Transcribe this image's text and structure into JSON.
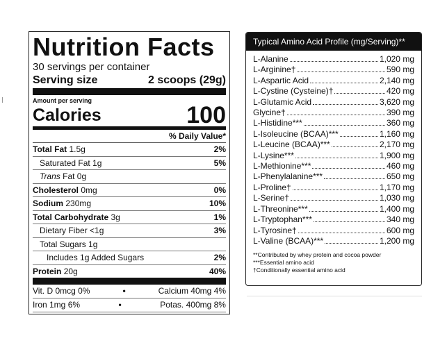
{
  "nutrition": {
    "title": "Nutrition Facts",
    "servings": "30 servings per container",
    "serving_size_label": "Serving size",
    "serving_size_value": "2 scoops (29g)",
    "amount_per_serving": "Amount per serving",
    "calories_label": "Calories",
    "calories_value": "100",
    "daily_value_header": "% Daily Value*",
    "rows": {
      "total_fat": {
        "label": "Total Fat",
        "amount": "1.5g",
        "pct": "2%"
      },
      "sat_fat": {
        "label": "Saturated Fat 1g",
        "pct": "5%"
      },
      "trans_fat": {
        "label_italic": "Trans",
        "label_rest": " Fat 0g"
      },
      "cholesterol": {
        "label": "Cholesterol",
        "amount": "0mg",
        "pct": "0%"
      },
      "sodium": {
        "label": "Sodium",
        "amount": "230mg",
        "pct": "10%"
      },
      "carb": {
        "label": "Total Carbohydrate",
        "amount": "3g",
        "pct": "1%"
      },
      "fiber": {
        "label": "Dietary Fiber <1g",
        "pct": "3%"
      },
      "sugars": {
        "label": "Total Sugars 1g"
      },
      "added_sugars": {
        "label": "Includes 1g Added Sugars",
        "pct": "2%"
      },
      "protein": {
        "label": "Protein",
        "amount": "20g",
        "pct": "40%"
      }
    },
    "vitamins": [
      {
        "left": "Vit. D 0mcg 0%",
        "right": "Calcium 40mg 4%"
      },
      {
        "left": "Iron 1mg 6%",
        "right": "Potas. 400mg 8%"
      }
    ],
    "bullet": "•"
  },
  "amino": {
    "title": "Typical Amino Acid Profile (mg/Serving)**",
    "items": [
      {
        "name": "L-Alanine",
        "value": "1,020 mg"
      },
      {
        "name": "L-Arginine†",
        "value": "590 mg"
      },
      {
        "name": "L-Aspartic Acid",
        "value": "2,140 mg"
      },
      {
        "name": "L-Cystine (Cysteine)†",
        "value": "420 mg"
      },
      {
        "name": "L-Glutamic Acid",
        "value": "3,620 mg"
      },
      {
        "name": "Glycine†",
        "value": "390 mg"
      },
      {
        "name": "L-Histidine***",
        "value": "360 mg"
      },
      {
        "name": "L-Isoleucine (BCAA)***",
        "value": "1,160 mg"
      },
      {
        "name": "L-Leucine (BCAA)***",
        "value": "2,170 mg"
      },
      {
        "name": "L-Lysine***",
        "value": "1,900 mg"
      },
      {
        "name": "L-Methionine***",
        "value": "460 mg"
      },
      {
        "name": "L-Phenylalanine***",
        "value": "650 mg"
      },
      {
        "name": "L-Proline†",
        "value": "1,170 mg"
      },
      {
        "name": "L-Serine†",
        "value": "1,030 mg"
      },
      {
        "name": "L-Threonine***",
        "value": "1,400 mg"
      },
      {
        "name": "L-Tryptophan***",
        "value": "340 mg"
      },
      {
        "name": "L-Tyrosine†",
        "value": "600 mg"
      },
      {
        "name": "L-Valine (BCAA)***",
        "value": "1,200 mg"
      }
    ],
    "notes": [
      "**Contributed by whey protein and cocoa powder",
      "***Essential amino acid",
      "†Conditionally essential amino acid"
    ]
  }
}
